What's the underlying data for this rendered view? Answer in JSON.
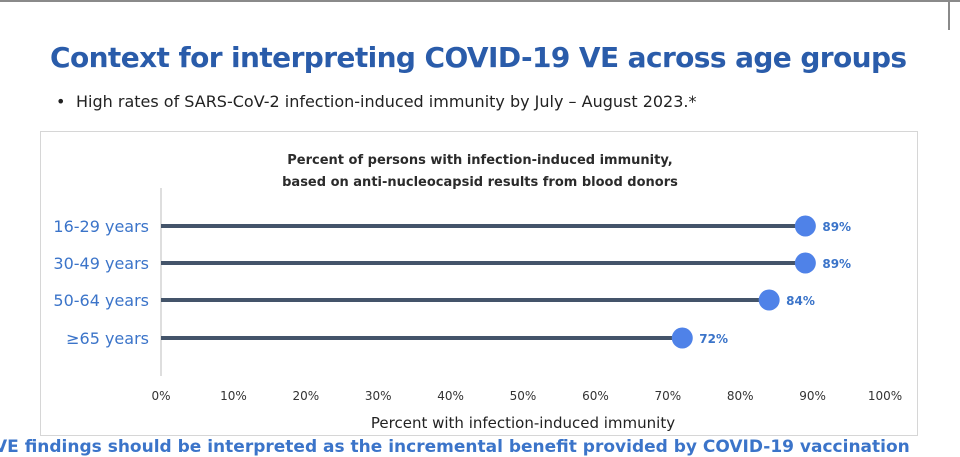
{
  "slide": {
    "title": "Context for interpreting COVID-19 VE across age groups",
    "bullet_symbol": "•",
    "bullet": "High rates of SARS-CoV-2 infection-induced immunity by July – August 2023.*",
    "bottom_text": "VE findings should be interpreted as the incremental benefit provided by COVID-19 vaccination"
  },
  "colors": {
    "title": "#2a5caa",
    "accent": "#3b74c9",
    "marker": "#4f82e8",
    "bar": "#44546a"
  },
  "chart_data": {
    "type": "lollipop",
    "title": [
      "Percent of persons with infection-induced immunity,",
      "based on anti-nucleocapsid results from blood donors"
    ],
    "xlabel": "Percent with infection-induced immunity",
    "xlim": [
      0,
      100
    ],
    "xticks": [
      0,
      10,
      20,
      30,
      40,
      50,
      60,
      70,
      80,
      90,
      100
    ],
    "xtick_labels": [
      "0%",
      "10%",
      "20%",
      "30%",
      "40%",
      "50%",
      "60%",
      "70%",
      "80%",
      "90%",
      "100%"
    ],
    "categories": [
      "16-29 years",
      "30-49 years",
      "50-64 years",
      "≥65 years"
    ],
    "values": [
      89,
      89,
      84,
      72
    ],
    "value_labels": [
      "89%",
      "89%",
      "84%",
      "72%"
    ]
  }
}
